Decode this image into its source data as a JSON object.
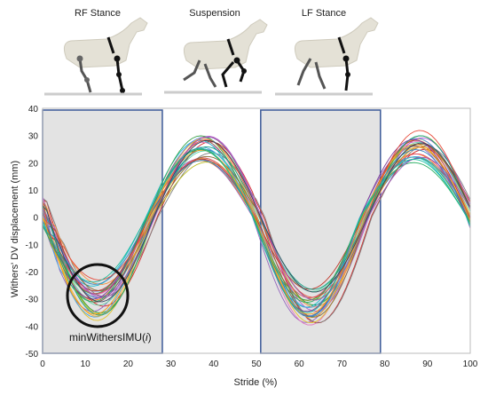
{
  "phases": [
    "RF Stance",
    "Suspension",
    "LF Stance"
  ],
  "chart_data": {
    "type": "line",
    "xlabel": "Stride (%)",
    "ylabel": "Withers' DV displacement (mm)",
    "xlim": [
      0,
      100
    ],
    "ylim": [
      -50,
      40
    ],
    "x_ticks": [
      0,
      10,
      20,
      30,
      40,
      50,
      60,
      70,
      80,
      90,
      100
    ],
    "y_ticks": [
      40,
      30,
      20,
      10,
      0,
      -10,
      -20,
      -30,
      -40,
      -50
    ],
    "shaded_regions": [
      {
        "x_start": 0,
        "x_end": 28
      },
      {
        "x_start": 51,
        "x_end": 79
      }
    ],
    "annotation": {
      "text": "minWithersIMU(i)",
      "x": 13,
      "y": -31
    },
    "series_summary": {
      "count": 30,
      "period": 50,
      "minima_x": [
        13,
        63
      ],
      "maxima_x": [
        39,
        89
      ],
      "min1_range": [
        -38,
        -23
      ],
      "max1_range": [
        20,
        30
      ],
      "min2_range": [
        -40,
        -26
      ],
      "max2_range": [
        20,
        34
      ]
    },
    "series_colors": [
      "#1f77b4",
      "#ff7f0e",
      "#2ca02c",
      "#d62728",
      "#9467bd",
      "#8c564b",
      "#e377c2",
      "#7f7f7f",
      "#bcbd22",
      "#17becf",
      "#e6c229",
      "#5b8ff9",
      "#61d9a8",
      "#f6903d",
      "#b15bd0",
      "#3fa34d",
      "#d94f70",
      "#4aa3df",
      "#f2b134",
      "#8a6d3b",
      "#c0392b",
      "#16a085",
      "#7d3c98",
      "#2e86c1",
      "#f39c12",
      "#27ae60",
      "#e74c3c",
      "#9b59b6",
      "#1abc9c",
      "#34495e"
    ]
  }
}
